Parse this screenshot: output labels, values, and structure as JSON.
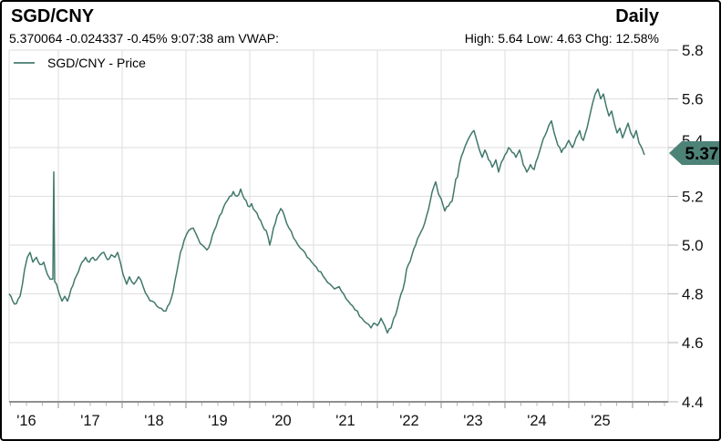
{
  "header": {
    "title": "SGD/CNY",
    "period": "Daily",
    "quote_line": "5.370064 -0.024337 -0.45% 9:07:38 am VWAP:",
    "stats_line": "High: 5.64 Low: 4.63 Chg: 12.58%"
  },
  "legend": {
    "label": "SGD/CNY - Price"
  },
  "price_tag": {
    "value": "5.37"
  },
  "colors": {
    "line": "#41786c",
    "legend_swatch": "#5e8d80",
    "tag_bg": "#4d8277",
    "tag_text": "#000000",
    "grid": "#e2e2e2",
    "axis": "#8f8f8f",
    "tick": "#b5b5b5",
    "text": "#111111"
  },
  "chart_data": {
    "type": "line",
    "title": "SGD/CNY - Price",
    "legend_position": "top-left",
    "grid": true,
    "x_axis": {
      "tick_labels": [
        "'16",
        "'17",
        "'18",
        "'19",
        "'20",
        "'21",
        "'22",
        "'23",
        "'24",
        "'25"
      ],
      "tick_years": [
        2016,
        2017,
        2018,
        2019,
        2020,
        2021,
        2022,
        2023,
        2024,
        2025
      ],
      "xlim": [
        2015.73,
        2026.06
      ],
      "minor_tick_interval_years": 0.25
    },
    "y_axis": {
      "tick_labels": [
        "5.8",
        "5.6",
        "5.4",
        "5.2",
        "5.0",
        "4.8",
        "4.6",
        "4.4"
      ],
      "tick_values": [
        5.8,
        5.6,
        5.4,
        5.2,
        5.0,
        4.8,
        4.6,
        4.4
      ],
      "ylim": [
        4.4,
        5.8
      ],
      "side": "right"
    },
    "last_price": 5.37,
    "high": 5.64,
    "low": 4.63,
    "change_pct": 12.58,
    "series": [
      {
        "name": "SGD/CNY - Price",
        "points": [
          [
            2015.729,
            4.8
          ],
          [
            2015.786,
            4.77
          ],
          [
            2015.843,
            4.76
          ],
          [
            2015.9,
            4.79
          ],
          [
            2015.971,
            4.9
          ],
          [
            2016.014,
            4.95
          ],
          [
            2016.057,
            4.97
          ],
          [
            2016.1,
            4.93
          ],
          [
            2016.157,
            4.95
          ],
          [
            2016.214,
            4.92
          ],
          [
            2016.271,
            4.93
          ],
          [
            2016.329,
            4.88
          ],
          [
            2016.371,
            4.86
          ],
          [
            2016.414,
            4.86
          ],
          [
            2016.429,
            5.3
          ],
          [
            2016.443,
            4.85
          ],
          [
            2016.471,
            4.84
          ],
          [
            2016.514,
            4.8
          ],
          [
            2016.557,
            4.77
          ],
          [
            2016.6,
            4.79
          ],
          [
            2016.643,
            4.77
          ],
          [
            2016.7,
            4.82
          ],
          [
            2016.757,
            4.86
          ],
          [
            2016.814,
            4.89
          ],
          [
            2016.871,
            4.93
          ],
          [
            2016.929,
            4.95
          ],
          [
            2016.986,
            4.93
          ],
          [
            2017.043,
            4.95
          ],
          [
            2017.1,
            4.94
          ],
          [
            2017.157,
            4.96
          ],
          [
            2017.214,
            4.97
          ],
          [
            2017.271,
            4.94
          ],
          [
            2017.329,
            4.96
          ],
          [
            2017.386,
            4.95
          ],
          [
            2017.429,
            4.97
          ],
          [
            2017.471,
            4.93
          ],
          [
            2017.514,
            4.88
          ],
          [
            2017.571,
            4.84
          ],
          [
            2017.614,
            4.87
          ],
          [
            2017.686,
            4.84
          ],
          [
            2017.757,
            4.87
          ],
          [
            2017.829,
            4.83
          ],
          [
            2017.9,
            4.79
          ],
          [
            2017.971,
            4.77
          ],
          [
            2018.043,
            4.75
          ],
          [
            2018.114,
            4.74
          ],
          [
            2018.186,
            4.73
          ],
          [
            2018.243,
            4.76
          ],
          [
            2018.3,
            4.81
          ],
          [
            2018.357,
            4.89
          ],
          [
            2018.414,
            4.97
          ],
          [
            2018.471,
            5.02
          ],
          [
            2018.543,
            5.06
          ],
          [
            2018.614,
            5.07
          ],
          [
            2018.686,
            5.03
          ],
          [
            2018.757,
            5.0
          ],
          [
            2018.829,
            4.98
          ],
          [
            2018.886,
            5.01
          ],
          [
            2018.943,
            5.06
          ],
          [
            2019.0,
            5.1
          ],
          [
            2019.057,
            5.13
          ],
          [
            2019.114,
            5.17
          ],
          [
            2019.186,
            5.2
          ],
          [
            2019.243,
            5.22
          ],
          [
            2019.3,
            5.2
          ],
          [
            2019.357,
            5.23
          ],
          [
            2019.414,
            5.19
          ],
          [
            2019.471,
            5.16
          ],
          [
            2019.529,
            5.17
          ],
          [
            2019.586,
            5.14
          ],
          [
            2019.643,
            5.11
          ],
          [
            2019.7,
            5.08
          ],
          [
            2019.757,
            5.06
          ],
          [
            2019.814,
            5.0
          ],
          [
            2019.871,
            5.07
          ],
          [
            2019.929,
            5.12
          ],
          [
            2019.986,
            5.15
          ],
          [
            2020.043,
            5.12
          ],
          [
            2020.114,
            5.07
          ],
          [
            2020.186,
            5.03
          ],
          [
            2020.257,
            5.0
          ],
          [
            2020.329,
            4.98
          ],
          [
            2020.4,
            4.95
          ],
          [
            2020.471,
            4.93
          ],
          [
            2020.543,
            4.91
          ],
          [
            2020.614,
            4.89
          ],
          [
            2020.686,
            4.86
          ],
          [
            2020.757,
            4.84
          ],
          [
            2020.829,
            4.82
          ],
          [
            2020.9,
            4.83
          ],
          [
            2020.971,
            4.8
          ],
          [
            2021.043,
            4.77
          ],
          [
            2021.114,
            4.75
          ],
          [
            2021.186,
            4.73
          ],
          [
            2021.257,
            4.7
          ],
          [
            2021.329,
            4.68
          ],
          [
            2021.4,
            4.66
          ],
          [
            2021.443,
            4.68
          ],
          [
            2021.5,
            4.67
          ],
          [
            2021.557,
            4.7
          ],
          [
            2021.614,
            4.67
          ],
          [
            2021.657,
            4.64
          ],
          [
            2021.714,
            4.66
          ],
          [
            2021.757,
            4.7
          ],
          [
            2021.814,
            4.74
          ],
          [
            2021.871,
            4.8
          ],
          [
            2021.929,
            4.85
          ],
          [
            2021.986,
            4.92
          ],
          [
            2022.043,
            4.96
          ],
          [
            2022.1,
            5.0
          ],
          [
            2022.157,
            5.04
          ],
          [
            2022.214,
            5.07
          ],
          [
            2022.271,
            5.12
          ],
          [
            2022.329,
            5.18
          ],
          [
            2022.386,
            5.24
          ],
          [
            2022.414,
            5.26
          ],
          [
            2022.457,
            5.21
          ],
          [
            2022.5,
            5.19
          ],
          [
            2022.557,
            5.14
          ],
          [
            2022.614,
            5.16
          ],
          [
            2022.671,
            5.18
          ],
          [
            2022.729,
            5.27
          ],
          [
            2022.786,
            5.33
          ],
          [
            2022.843,
            5.38
          ],
          [
            2022.9,
            5.42
          ],
          [
            2022.957,
            5.45
          ],
          [
            2023.014,
            5.47
          ],
          [
            2023.057,
            5.43
          ],
          [
            2023.1,
            5.39
          ],
          [
            2023.143,
            5.36
          ],
          [
            2023.186,
            5.39
          ],
          [
            2023.243,
            5.35
          ],
          [
            2023.3,
            5.32
          ],
          [
            2023.357,
            5.35
          ],
          [
            2023.4,
            5.3
          ],
          [
            2023.443,
            5.34
          ],
          [
            2023.5,
            5.37
          ],
          [
            2023.557,
            5.4
          ],
          [
            2023.614,
            5.38
          ],
          [
            2023.671,
            5.36
          ],
          [
            2023.729,
            5.39
          ],
          [
            2023.786,
            5.33
          ],
          [
            2023.843,
            5.3
          ],
          [
            2023.9,
            5.33
          ],
          [
            2023.957,
            5.31
          ],
          [
            2024.014,
            5.36
          ],
          [
            2024.071,
            5.41
          ],
          [
            2024.129,
            5.45
          ],
          [
            2024.186,
            5.49
          ],
          [
            2024.229,
            5.51
          ],
          [
            2024.271,
            5.46
          ],
          [
            2024.329,
            5.41
          ],
          [
            2024.386,
            5.38
          ],
          [
            2024.443,
            5.4
          ],
          [
            2024.5,
            5.43
          ],
          [
            2024.557,
            5.4
          ],
          [
            2024.614,
            5.44
          ],
          [
            2024.671,
            5.47
          ],
          [
            2024.729,
            5.43
          ],
          [
            2024.786,
            5.48
          ],
          [
            2024.829,
            5.53
          ],
          [
            2024.871,
            5.58
          ],
          [
            2024.914,
            5.62
          ],
          [
            2024.957,
            5.64
          ],
          [
            2025.0,
            5.6
          ],
          [
            2025.043,
            5.62
          ],
          [
            2025.086,
            5.57
          ],
          [
            2025.129,
            5.53
          ],
          [
            2025.171,
            5.55
          ],
          [
            2025.214,
            5.5
          ],
          [
            2025.257,
            5.46
          ],
          [
            2025.3,
            5.48
          ],
          [
            2025.343,
            5.44
          ],
          [
            2025.386,
            5.47
          ],
          [
            2025.429,
            5.5
          ],
          [
            2025.471,
            5.46
          ],
          [
            2025.514,
            5.44
          ],
          [
            2025.557,
            5.47
          ],
          [
            2025.6,
            5.42
          ],
          [
            2025.643,
            5.4
          ],
          [
            2025.686,
            5.37
          ]
        ]
      }
    ]
  }
}
